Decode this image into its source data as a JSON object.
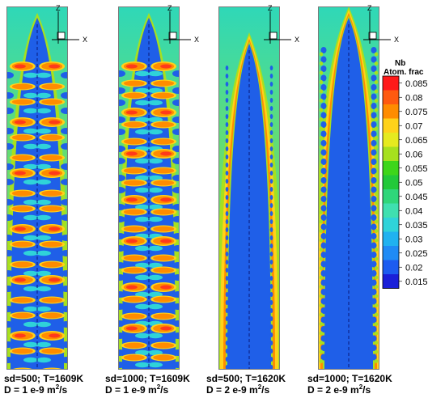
{
  "panels": [
    {
      "caption_line1": "sd=500; T=1609K",
      "caption_line2_pre": "D = 1 e-9 m",
      "caption_line2_sup": "2",
      "caption_line2_post": "/s",
      "axis_z": "Z",
      "axis_x": "X",
      "pattern": "dendrite-arms",
      "arm_period_rows": 22
    },
    {
      "caption_line1": "sd=1000; T=1609K",
      "caption_line2_pre": "D = 1 e-9 m",
      "caption_line2_sup": "2",
      "caption_line2_post": "/s",
      "axis_z": "Z",
      "axis_x": "X",
      "pattern": "dendrite-arms",
      "arm_period_rows": 18
    },
    {
      "caption_line1": "sd=500; T=1620K",
      "caption_line2_pre": "D = 2 e-9 m",
      "caption_line2_sup": "2",
      "caption_line2_post": "/s",
      "axis_z": "Z",
      "axis_x": "X",
      "pattern": "smooth-cell"
    },
    {
      "caption_line1": "sd=1000; T=1620K",
      "caption_line2_pre": "D = 2 e-9 m",
      "caption_line2_sup": "2",
      "caption_line2_post": "/s",
      "axis_z": "Z",
      "axis_x": "X",
      "pattern": "wavy-cell"
    }
  ],
  "legend": {
    "title_line1": "Nb",
    "title_line2": "Atom. frac",
    "levels": [
      {
        "value": "0.085",
        "color": "#ff1a1a"
      },
      {
        "value": "0.08",
        "color": "#ff5a10"
      },
      {
        "value": "0.075",
        "color": "#ff8c00"
      },
      {
        "value": "0.07",
        "color": "#ffd21a"
      },
      {
        "value": "0.065",
        "color": "#e6ea1f"
      },
      {
        "value": "0.06",
        "color": "#a6e01f"
      },
      {
        "value": "0.055",
        "color": "#3ed61a"
      },
      {
        "value": "0.05",
        "color": "#22c93a"
      },
      {
        "value": "0.045",
        "color": "#2fd67a"
      },
      {
        "value": "0.04",
        "color": "#3fe0b0"
      },
      {
        "value": "0.035",
        "color": "#2fd3d9"
      },
      {
        "value": "0.03",
        "color": "#20b2f0"
      },
      {
        "value": "0.025",
        "color": "#1f8bf5"
      },
      {
        "value": "0.02",
        "color": "#1c5cf0"
      },
      {
        "value": "0.015",
        "color": "#1a1fd8"
      }
    ]
  },
  "colors": {
    "background": "#2fd6b0",
    "core": "#1f5fe8",
    "centerline": "#0a1a7a"
  }
}
